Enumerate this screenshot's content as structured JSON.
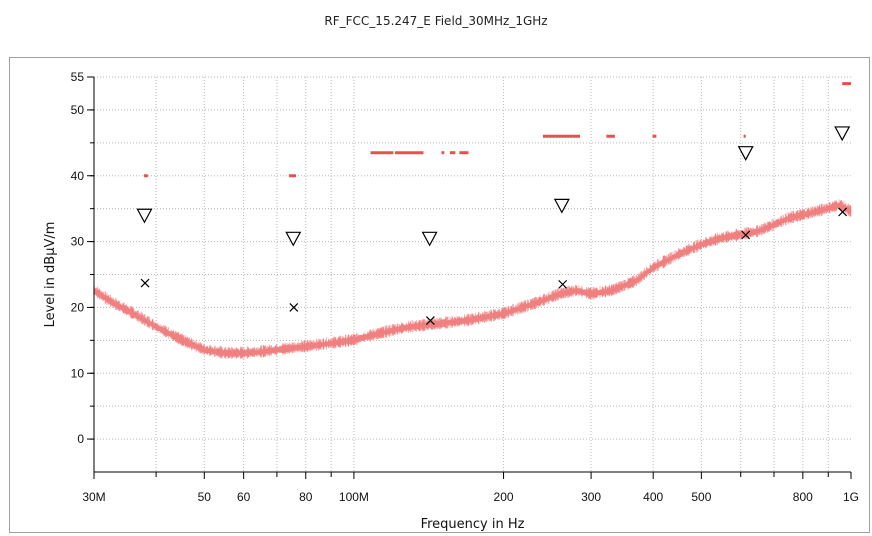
{
  "window": {
    "title": "RF_FCC_15.247_E Field_30MHz_1GHz"
  },
  "colors": {
    "background": "#ffffff",
    "trace": "#f08080",
    "limit": "#e85050",
    "grid": "#b8b8b8",
    "axis": "#000000",
    "marker": "#000000"
  },
  "chart_data": {
    "type": "line",
    "title": "RF_FCC_15.247_E Field_30MHz_1GHz",
    "xlabel": "Frequency in Hz",
    "ylabel": "Level in dBµV/m",
    "xscale": "log",
    "xlim": [
      30000000,
      1000000000
    ],
    "ylim": [
      -5,
      55
    ],
    "grid": true,
    "x_ticks": [
      {
        "value": 30000000,
        "label": "30M"
      },
      {
        "value": 50000000,
        "label": "50"
      },
      {
        "value": 60000000,
        "label": "60"
      },
      {
        "value": 80000000,
        "label": "80"
      },
      {
        "value": 100000000,
        "label": "100M"
      },
      {
        "value": 200000000,
        "label": "200"
      },
      {
        "value": 300000000,
        "label": "300"
      },
      {
        "value": 400000000,
        "label": "400"
      },
      {
        "value": 500000000,
        "label": "500"
      },
      {
        "value": 800000000,
        "label": "800"
      },
      {
        "value": 1000000000,
        "label": "1G"
      }
    ],
    "x_minor_ticks": [
      40000000,
      70000000,
      90000000,
      600000000,
      700000000,
      900000000
    ],
    "y_ticks": [
      {
        "value": 0,
        "label": "0"
      },
      {
        "value": 10,
        "label": "10"
      },
      {
        "value": 20,
        "label": "20"
      },
      {
        "value": 30,
        "label": "30"
      },
      {
        "value": 40,
        "label": "40"
      },
      {
        "value": 50,
        "label": "50"
      },
      {
        "value": 55,
        "label": "55"
      }
    ],
    "series": [
      {
        "name": "",
        "kind": "trace",
        "x": [
          30000000,
          33000000,
          36000000,
          40000000,
          45000000,
          50000000,
          55000000,
          60000000,
          65000000,
          70000000,
          80000000,
          90000000,
          100000000,
          110000000,
          120000000,
          130000000,
          150000000,
          170000000,
          200000000,
          230000000,
          260000000,
          280000000,
          300000000,
          330000000,
          370000000,
          400000000,
          450000000,
          500000000,
          550000000,
          600000000,
          650000000,
          700000000,
          750000000,
          800000000,
          850000000,
          900000000,
          950000000,
          1000000000
        ],
        "y": [
          22.5,
          20.5,
          19,
          17,
          15,
          13.5,
          13,
          13,
          13.2,
          13.5,
          14,
          14.5,
          15,
          15.8,
          16.5,
          17,
          17.5,
          18,
          19,
          20.5,
          22,
          22.5,
          22,
          22.5,
          24,
          26,
          28,
          29.5,
          30.5,
          31,
          31.5,
          32.5,
          33.5,
          34,
          34.5,
          35,
          35.5,
          34.5
        ]
      },
      {
        "name": "",
        "kind": "limit-segments",
        "segments": [
          {
            "x": [
              37800000,
              38500000
            ],
            "y": 40
          },
          {
            "x": [
              74000000,
              76500000
            ],
            "y": 40
          },
          {
            "x": [
              108000000,
              120000000
            ],
            "y": 43.5
          },
          {
            "x": [
              121000000,
              138000000
            ],
            "y": 43.5
          },
          {
            "x": [
              150000000,
              152000000
            ],
            "y": 43.5
          },
          {
            "x": [
              156000000,
              160000000
            ],
            "y": 43.5
          },
          {
            "x": [
              163000000,
              170000000
            ],
            "y": 43.5
          },
          {
            "x": [
              240000000,
              285000000
            ],
            "y": 46
          },
          {
            "x": [
              322000000,
              335000000
            ],
            "y": 46
          },
          {
            "x": [
              399000000,
              406000000
            ],
            "y": 46
          },
          {
            "x": [
              608000000,
              614000000
            ],
            "y": 46
          },
          {
            "x": [
              960000000,
              1000000000
            ],
            "y": 54
          }
        ]
      },
      {
        "name": "",
        "kind": "peak-markers",
        "marker": "triangle-down",
        "x": [
          37900000,
          75500000,
          142000000,
          262000000,
          614000000,
          960000000
        ],
        "y": [
          34,
          30.5,
          30.5,
          35.5,
          43.5,
          46.5
        ]
      },
      {
        "name": "",
        "kind": "quasi-peak-markers",
        "marker": "x",
        "x": [
          38000000,
          75700000,
          142500000,
          263000000,
          614000000,
          962000000
        ],
        "y": [
          23.7,
          20,
          18,
          23.5,
          31,
          34.5
        ]
      }
    ]
  }
}
